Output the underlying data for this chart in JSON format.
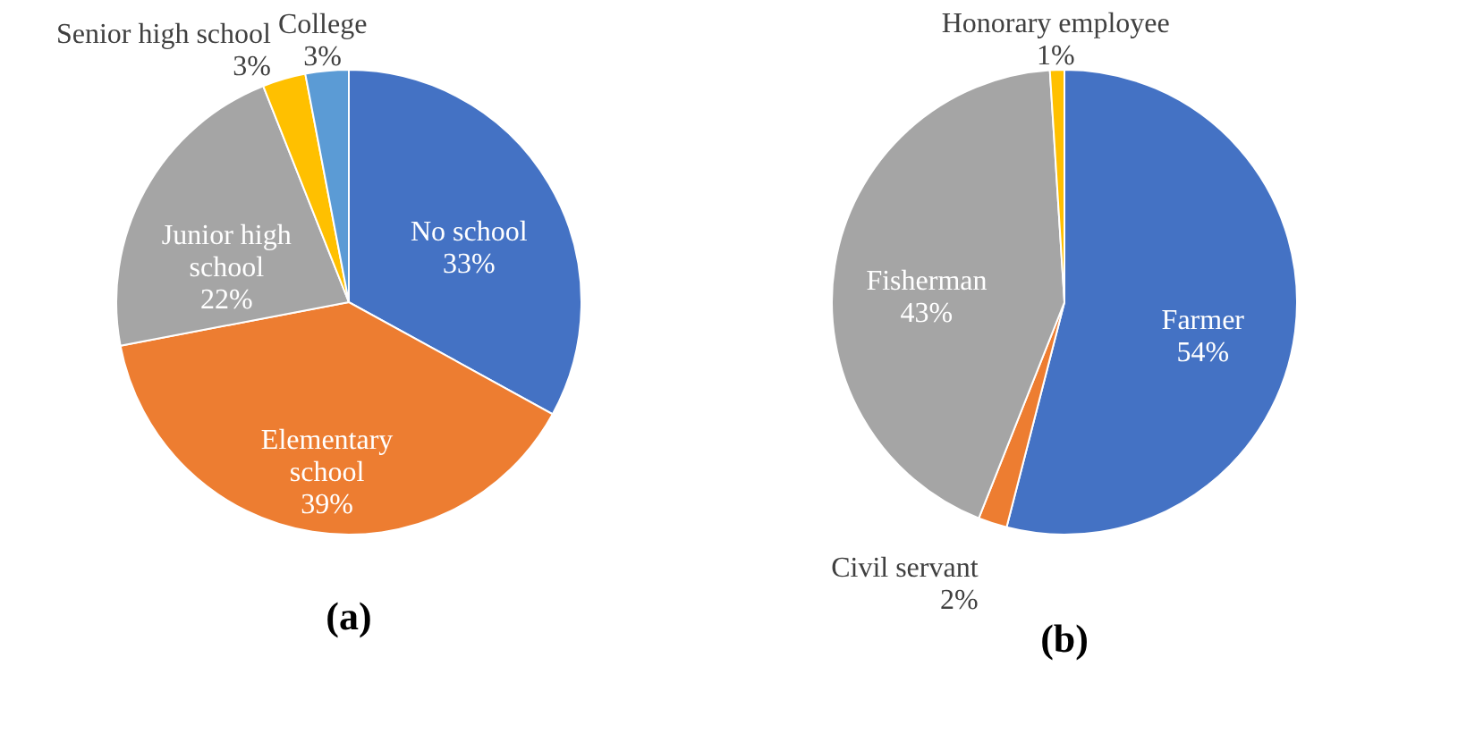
{
  "chart_data": [
    {
      "type": "pie",
      "title": "(a)",
      "categories": [
        "No school",
        "Elementary school",
        "Junior high school",
        "Senior high school",
        "College"
      ],
      "values": [
        33,
        39,
        22,
        3,
        3
      ],
      "value_labels": [
        "33%",
        "39%",
        "22%",
        "3%",
        "3%"
      ],
      "colors": [
        "#4472c4",
        "#ed7d31",
        "#a5a5a5",
        "#ffc000",
        "#5b9bd5"
      ]
    },
    {
      "type": "pie",
      "title": "(b)",
      "categories": [
        "Farmer",
        "Civil servant",
        "Fisherman",
        "Honorary employee"
      ],
      "values": [
        54,
        2,
        43,
        1
      ],
      "value_labels": [
        "54%",
        "2%",
        "43%",
        "1%"
      ],
      "colors": [
        "#4472c4",
        "#ed7d31",
        "#a5a5a5",
        "#ffc000"
      ]
    }
  ]
}
